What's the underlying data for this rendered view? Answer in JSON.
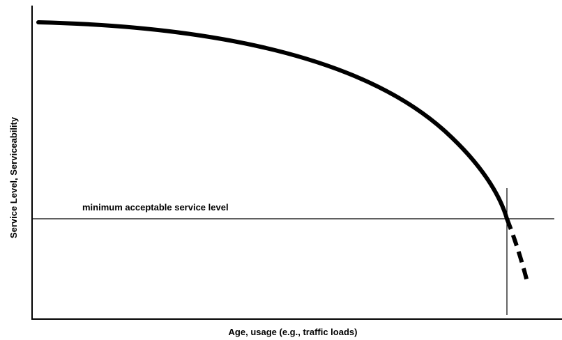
{
  "y_axis_label": "Service Level, Serviceability",
  "x_axis_label": "Age, usage (e.g., traffic loads)",
  "threshold_label": "minimum acceptable service level"
}
